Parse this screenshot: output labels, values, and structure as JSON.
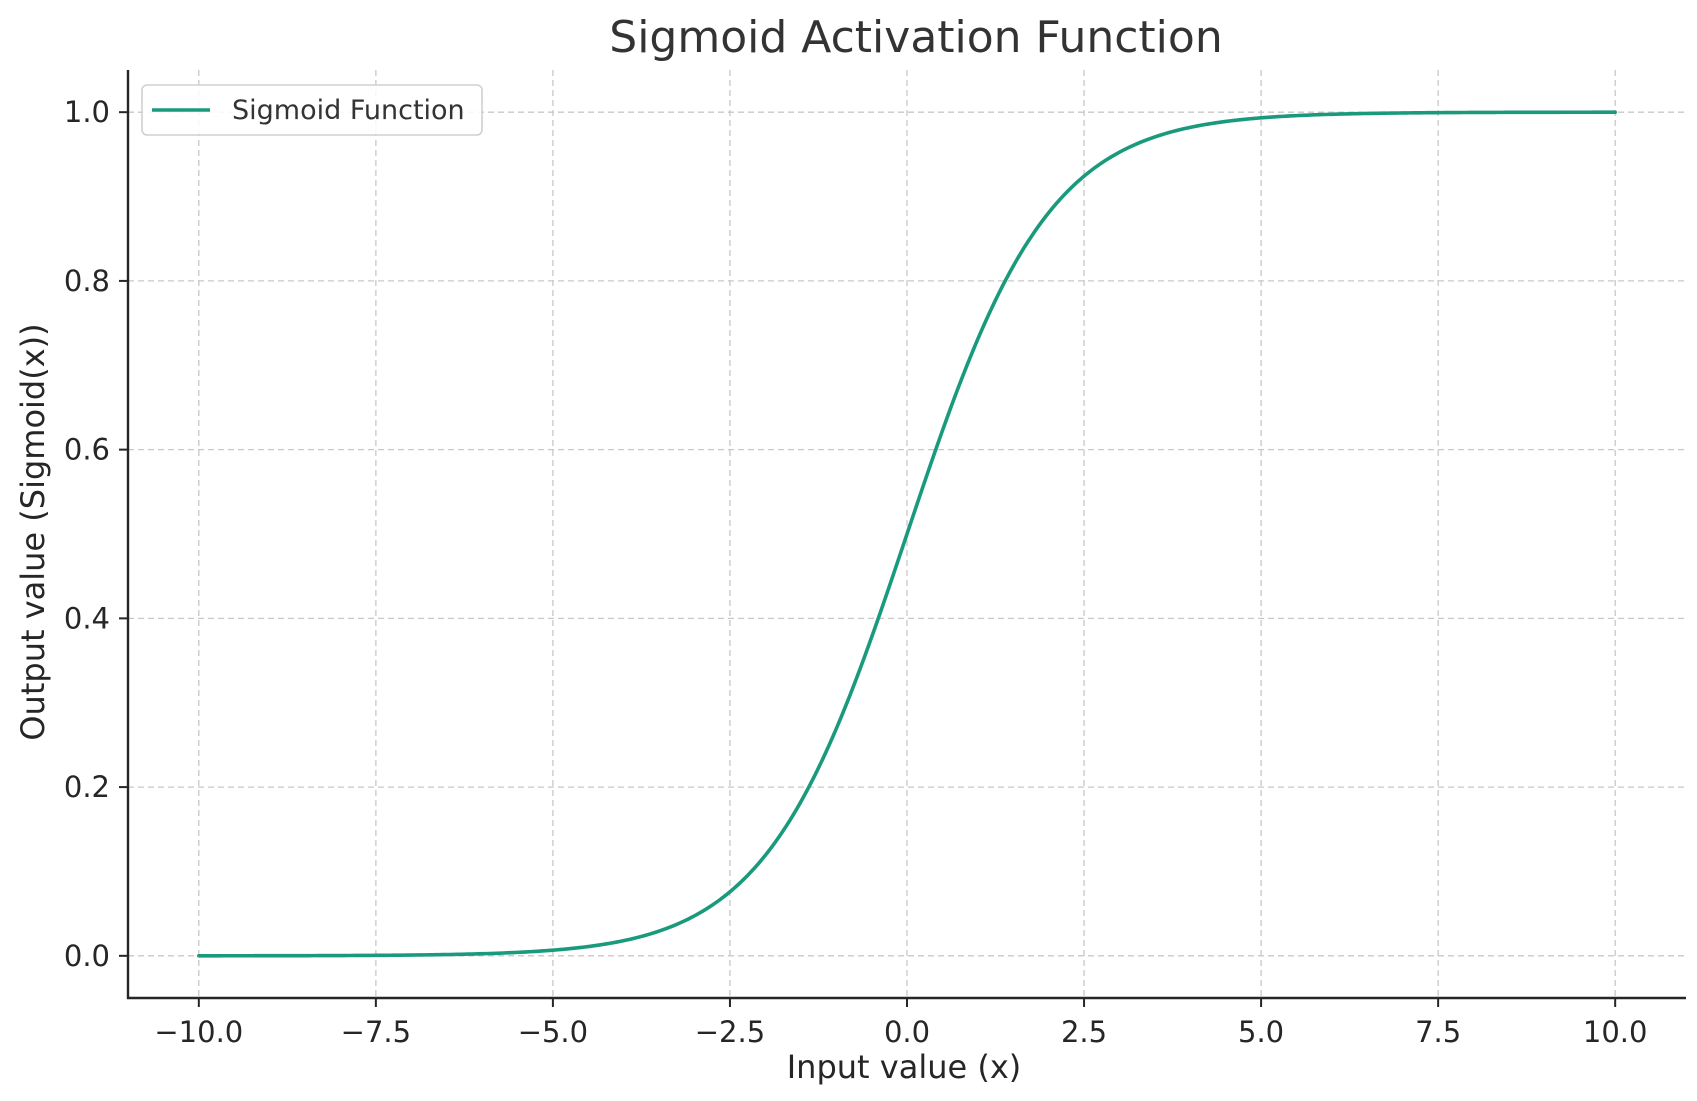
{
  "chart_data": {
    "type": "line",
    "title": "Sigmoid Activation Function",
    "xlabel": "Input value (x)",
    "ylabel": "Output value (Sigmoid(x))",
    "xlim": [
      -11.0,
      11.0
    ],
    "ylim": [
      -0.05,
      1.05
    ],
    "xticks": [
      -10.0,
      -7.5,
      -5.0,
      -2.5,
      0.0,
      2.5,
      5.0,
      7.5,
      10.0
    ],
    "xtick_labels": [
      "−10.0",
      "−7.5",
      "−5.0",
      "−2.5",
      "0.0",
      "2.5",
      "5.0",
      "7.5",
      "10.0"
    ],
    "yticks": [
      0.0,
      0.2,
      0.4,
      0.6,
      0.8,
      1.0
    ],
    "ytick_labels": [
      "0.0",
      "0.2",
      "0.4",
      "0.6",
      "0.8",
      "1.0"
    ],
    "grid": true,
    "legend_position": "top-left",
    "series": [
      {
        "name": "Sigmoid Function",
        "color": "#1a9a7c",
        "function": "1/(1+exp(-x))",
        "x": [
          -10,
          -9,
          -8,
          -7,
          -6,
          -5,
          -4.5,
          -4,
          -3.5,
          -3,
          -2.5,
          -2,
          -1.5,
          -1,
          -0.5,
          0,
          0.5,
          1,
          1.5,
          2,
          2.5,
          3,
          3.5,
          4,
          4.5,
          5,
          6,
          7,
          8,
          9,
          10
        ],
        "y": [
          5e-05,
          0.00012,
          0.00034,
          0.00091,
          0.00247,
          0.00669,
          0.01099,
          0.01799,
          0.02931,
          0.04743,
          0.07586,
          0.1192,
          0.18243,
          0.26894,
          0.37754,
          0.5,
          0.62246,
          0.73106,
          0.81757,
          0.8808,
          0.92414,
          0.95257,
          0.97069,
          0.98201,
          0.98901,
          0.99331,
          0.99753,
          0.99909,
          0.99966,
          0.99988,
          0.99995
        ]
      }
    ]
  }
}
